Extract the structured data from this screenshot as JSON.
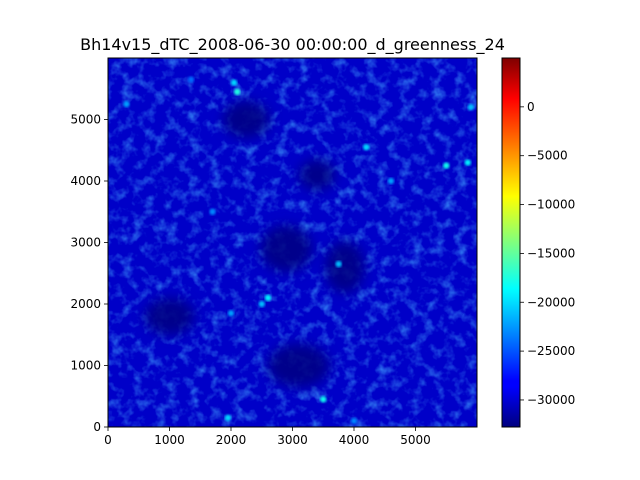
{
  "chart_data": {
    "type": "heatmap",
    "title": "Bh14v15_dTC_2008-06-30 00:00:00_d_greenness_24",
    "xlabel": "",
    "ylabel": "",
    "xlim": [
      0,
      6000
    ],
    "ylim": [
      0,
      6000
    ],
    "x_ticks": [
      0,
      1000,
      2000,
      3000,
      4000,
      5000
    ],
    "y_ticks": [
      0,
      1000,
      2000,
      3000,
      4000,
      5000
    ],
    "x_tick_labels": [
      "0",
      "1000",
      "2000",
      "3000",
      "4000",
      "5000"
    ],
    "y_tick_labels": [
      "0",
      "1000",
      "2000",
      "3000",
      "4000",
      "5000"
    ],
    "colormap": "jet",
    "colorbar": {
      "vmin": -32768,
      "vmax": 5000,
      "ticks": [
        0,
        -5000,
        -10000,
        -15000,
        -20000,
        -25000,
        -30000
      ],
      "tick_labels": [
        "0",
        "−5000",
        "−10000",
        "−15000",
        "−20000",
        "−25000",
        "−30000"
      ]
    },
    "dominant_value": -32768,
    "dark_regions": [
      {
        "name": "central-dark-lake",
        "x": 2900,
        "y": 2900,
        "rx": 420,
        "ry": 380,
        "value": -32768
      },
      {
        "name": "east-dark-lake",
        "x": 3850,
        "y": 2600,
        "rx": 320,
        "ry": 420,
        "value": -32768
      },
      {
        "name": "north-dark-area",
        "x": 2250,
        "y": 5000,
        "rx": 380,
        "ry": 300,
        "value": -32768
      },
      {
        "name": "upper-mid-dark",
        "x": 3400,
        "y": 4100,
        "rx": 300,
        "ry": 250,
        "value": -32768
      },
      {
        "name": "south-dark-area",
        "x": 3100,
        "y": 1000,
        "rx": 500,
        "ry": 350,
        "value": -32768
      },
      {
        "name": "southwest-dark",
        "x": 1000,
        "y": 1800,
        "rx": 400,
        "ry": 300,
        "value": -32768
      }
    ],
    "hotspots": [
      {
        "x": 2050,
        "y": 5600,
        "value": -20000
      },
      {
        "x": 2100,
        "y": 5450,
        "value": -17500
      },
      {
        "x": 300,
        "y": 5250,
        "value": -22000
      },
      {
        "x": 5850,
        "y": 4300,
        "value": -19000
      },
      {
        "x": 5500,
        "y": 4250,
        "value": -18000
      },
      {
        "x": 2600,
        "y": 2100,
        "value": -19000
      },
      {
        "x": 2500,
        "y": 2000,
        "value": -21000
      },
      {
        "x": 3500,
        "y": 450,
        "value": -18000
      },
      {
        "x": 1950,
        "y": 150,
        "value": -20000
      },
      {
        "x": 4200,
        "y": 4550,
        "value": -20000
      },
      {
        "x": 3750,
        "y": 2650,
        "value": -21000
      },
      {
        "x": 2000,
        "y": 1850,
        "value": -22000
      },
      {
        "x": 4000,
        "y": 100,
        "value": -23000
      },
      {
        "x": 4600,
        "y": 4000,
        "value": -22000
      },
      {
        "x": 5900,
        "y": 5200,
        "value": -21000
      },
      {
        "x": 1700,
        "y": 3500,
        "value": -23000
      },
      {
        "x": 1350,
        "y": 5650,
        "value": -24000
      }
    ]
  }
}
